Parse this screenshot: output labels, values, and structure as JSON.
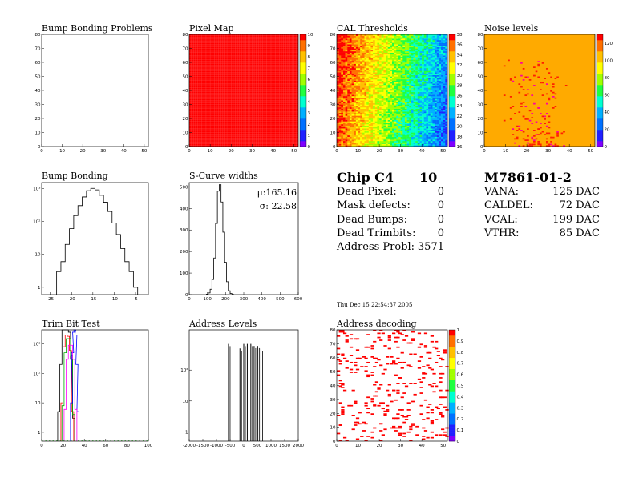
{
  "colors": {
    "dead_red": "#ff0000",
    "noise_orange": "#ffaa00",
    "palette": [
      "#7f00ff",
      "#2020ff",
      "#0070ff",
      "#00b0ff",
      "#00ffd0",
      "#20ff40",
      "#a0ff00",
      "#ffff00",
      "#ffc000",
      "#ff7000",
      "#ff0000"
    ]
  },
  "chart_data": [
    {
      "id": "bump-bonding-problems",
      "type": "heatmap",
      "title": "Bump Bonding Problems",
      "xlim": [
        0,
        52
      ],
      "ylim": [
        0,
        80
      ],
      "xticks": [
        "0",
        "10",
        "20",
        "30",
        "40",
        "50"
      ],
      "yticks": [
        "0",
        "10",
        "20",
        "30",
        "40",
        "50",
        "60",
        "70",
        "80"
      ],
      "entries": 0
    },
    {
      "id": "pixel-map",
      "type": "heatmap",
      "title": "Pixel Map",
      "xlim": [
        0,
        52
      ],
      "ylim": [
        0,
        80
      ],
      "xticks": [
        "0",
        "10",
        "20",
        "30",
        "40",
        "50"
      ],
      "yticks": [
        "0",
        "10",
        "20",
        "30",
        "40",
        "50",
        "60",
        "70",
        "80"
      ],
      "zlim": [
        0,
        10
      ],
      "zticks": [
        "0",
        "1",
        "2",
        "3",
        "4",
        "5",
        "6",
        "7",
        "8",
        "9",
        "10"
      ],
      "uniform_value": 10
    },
    {
      "id": "cal-thresholds",
      "type": "heatmap",
      "title": "CAL Thresholds",
      "xlim": [
        0,
        52
      ],
      "ylim": [
        0,
        80
      ],
      "xticks": [
        "0",
        "10",
        "20",
        "30",
        "40",
        "50"
      ],
      "yticks": [
        "0",
        "10",
        "20",
        "30",
        "40",
        "50",
        "60",
        "70",
        "80"
      ],
      "zlim": [
        16,
        38
      ],
      "zticks": [
        "16",
        "18",
        "20",
        "22",
        "24",
        "26",
        "28",
        "30",
        "32",
        "34",
        "36",
        "38"
      ]
    },
    {
      "id": "noise-levels",
      "type": "heatmap",
      "title": "Noise levels",
      "xlim": [
        0,
        52
      ],
      "ylim": [
        0,
        80
      ],
      "xticks": [
        "0",
        "10",
        "20",
        "30",
        "40",
        "50"
      ],
      "yticks": [
        "0",
        "10",
        "20",
        "30",
        "40",
        "50",
        "60",
        "70",
        "80"
      ],
      "zlim": [
        0,
        130
      ],
      "zticks": [
        "0",
        "20",
        "40",
        "60",
        "80",
        "100",
        "120"
      ]
    },
    {
      "id": "bump-bonding",
      "type": "line",
      "title": "Bump Bonding",
      "log_y": true,
      "xlim": [
        -27,
        -2
      ],
      "ylim": [
        0.6,
        1500
      ],
      "xticks": [
        "-25",
        "-20",
        "-15",
        "-10",
        "-5"
      ],
      "yticks": [
        "1",
        "10",
        "10²",
        "10³"
      ],
      "x": [
        -23,
        -22,
        -21,
        -20,
        -19,
        -18,
        -17,
        -16,
        -15,
        -14,
        -13,
        -12,
        -11,
        -10,
        -9,
        -8,
        -7,
        -6,
        -5
      ],
      "values": [
        3,
        6,
        20,
        60,
        150,
        300,
        550,
        850,
        1000,
        900,
        620,
        380,
        200,
        90,
        40,
        15,
        6,
        3,
        1
      ]
    },
    {
      "id": "s-curve-widths",
      "type": "line",
      "title": "S-Curve widths",
      "xlim": [
        0,
        600
      ],
      "ylim": [
        0,
        520
      ],
      "xticks": [
        "0",
        "100",
        "200",
        "300",
        "400",
        "500",
        "600"
      ],
      "yticks": [
        "0",
        "100",
        "200",
        "300",
        "400",
        "500"
      ],
      "stats": {
        "mean": "μ:165.16",
        "sigma": "σ: 22.58"
      },
      "x": [
        100,
        110,
        120,
        130,
        140,
        150,
        160,
        170,
        180,
        190,
        200,
        210,
        220,
        230,
        240
      ],
      "values": [
        2,
        8,
        25,
        70,
        170,
        330,
        480,
        510,
        430,
        290,
        150,
        60,
        18,
        5,
        1
      ]
    },
    {
      "id": "trim-bit-test",
      "type": "line",
      "title": "Trim Bit Test",
      "log_y": true,
      "xlim": [
        0,
        100
      ],
      "ylim": [
        0.5,
        3000
      ],
      "xticks": [
        "0",
        "20",
        "40",
        "60",
        "80",
        "100"
      ],
      "yticks": [
        "1",
        "10",
        "10²",
        "10³"
      ],
      "series": [
        {
          "color": "#000000",
          "x": [
            16,
            18,
            20,
            22,
            24,
            26,
            28,
            30
          ],
          "values": [
            5,
            200,
            3000,
            3000,
            3000,
            2500,
            300,
            3
          ]
        },
        {
          "color": "#ff0000",
          "x": [
            19,
            21,
            23,
            25,
            27,
            29
          ],
          "values": [
            10,
            800,
            2000,
            1800,
            600,
            5
          ]
        },
        {
          "color": "#00aa00",
          "x": [
            20,
            22,
            24,
            26,
            28,
            30
          ],
          "values": [
            8,
            500,
            1500,
            1500,
            400,
            4
          ]
        },
        {
          "color": "#0000ff",
          "x": [
            28,
            29,
            30,
            31,
            32,
            33,
            34
          ],
          "values": [
            10,
            500,
            2500,
            3000,
            2000,
            200,
            5
          ]
        },
        {
          "color": "#ff00ff",
          "x": [
            22,
            24,
            26,
            28,
            30,
            32
          ],
          "values": [
            6,
            300,
            900,
            900,
            300,
            6
          ]
        }
      ]
    },
    {
      "id": "address-levels",
      "type": "bar",
      "title": "Address Levels",
      "log_y": true,
      "xlim": [
        -2000,
        2000
      ],
      "ylim": [
        0.5,
        2000
      ],
      "xticks": [
        "-2000",
        "-1500",
        "-1000",
        "-500",
        "0",
        "500",
        "1000",
        "1500",
        "2000"
      ],
      "yticks": [
        "1",
        "10",
        "10²"
      ],
      "x": [
        -560,
        -140,
        0,
        130,
        260,
        380,
        510,
        630
      ],
      "values": [
        700,
        500,
        700,
        700,
        700,
        600,
        600,
        500
      ]
    },
    {
      "id": "address-decoding",
      "type": "heatmap",
      "title": "Address decoding",
      "xlim": [
        0,
        52
      ],
      "ylim": [
        0,
        80
      ],
      "xticks": [
        "0",
        "10",
        "20",
        "30",
        "40",
        "50"
      ],
      "yticks": [
        "0",
        "10",
        "20",
        "30",
        "40",
        "50",
        "60",
        "70",
        "80"
      ],
      "zlim": [
        0,
        1
      ],
      "zticks": [
        "0",
        "0.1",
        "0.2",
        "0.3",
        "0.4",
        "0.5",
        "0.6",
        "0.7",
        "0.8",
        "0.9",
        "1"
      ]
    }
  ],
  "summary": {
    "chip_label": "Chip C4",
    "chip_number": "10",
    "rows": [
      {
        "label": "Dead Pixel:",
        "value": "0"
      },
      {
        "label": "Mask defects:",
        "value": "0"
      },
      {
        "label": "Dead Bumps:",
        "value": "0"
      },
      {
        "label": "Dead Trimbits:",
        "value": "0"
      },
      {
        "label": "Address Probl:",
        "value": "3571"
      }
    ],
    "date": "Thu Dec 15 22:54:37 2005"
  },
  "module": {
    "name": "M7861-01-2",
    "rows": [
      {
        "label": "VANA:",
        "value": "125 DAC"
      },
      {
        "label": "CALDEL:",
        "value": "72 DAC"
      },
      {
        "label": "VCAL:",
        "value": "199 DAC"
      },
      {
        "label": "VTHR:",
        "value": "85 DAC"
      }
    ]
  }
}
